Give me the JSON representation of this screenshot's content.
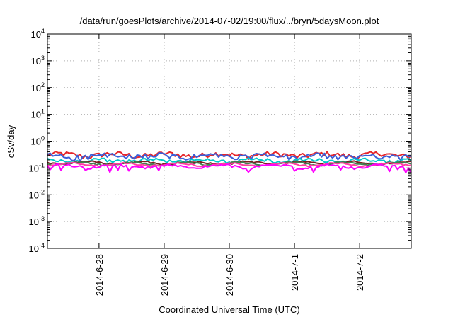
{
  "chart_data": {
    "type": "line",
    "title": "/data/run/goesPlots/archive/2014-07-02/19:00/flux/../bryn/5daysMoon.plot",
    "xlabel": "Coordinated Universal Time (UTC)",
    "ylabel": "cSv/day",
    "y_scale": "log",
    "ylim": [
      0.0001,
      10000
    ],
    "y_ticks": [
      {
        "value": 0.0001,
        "base": "10",
        "exp": "-4"
      },
      {
        "value": 0.001,
        "base": "10",
        "exp": "-3"
      },
      {
        "value": 0.01,
        "base": "10",
        "exp": "-2"
      },
      {
        "value": 0.1,
        "base": "10",
        "exp": "-1"
      },
      {
        "value": 1,
        "base": "10",
        "exp": "0"
      },
      {
        "value": 10,
        "base": "10",
        "exp": "1"
      },
      {
        "value": 100,
        "base": "10",
        "exp": "2"
      },
      {
        "value": 1000,
        "base": "10",
        "exp": "3"
      },
      {
        "value": 10000,
        "base": "10",
        "exp": "4"
      }
    ],
    "xlim": [
      "2014-06-27T05:00",
      "2014-07-02T19:00"
    ],
    "x_ticks": [
      {
        "value": "2014-06-28T00:00",
        "label": "2014-6-28"
      },
      {
        "value": "2014-06-29T00:00",
        "label": "2014-6-29"
      },
      {
        "value": "2014-06-30T00:00",
        "label": "2014-6-30"
      },
      {
        "value": "2014-07-01T00:00",
        "label": "2014-7-1"
      },
      {
        "value": "2014-07-02T00:00",
        "label": "2014-7-2"
      }
    ],
    "grid": true,
    "sample_interval_hours": 1,
    "series": [
      {
        "color": "#e6252a",
        "base": 0.31,
        "amplitude": 0.22,
        "dips": 0.0
      },
      {
        "color": "#3a5fd9",
        "base": 0.27,
        "amplitude": 0.24,
        "dips": 0.0
      },
      {
        "color": "#00c8c8",
        "base": 0.19,
        "amplitude": 0.15,
        "dips": 0.0
      },
      {
        "color": "#7a1f1f",
        "base": 0.155,
        "amplitude": 0.08,
        "dips": 0.0
      },
      {
        "color": "#3f7f4f",
        "base": 0.145,
        "amplitude": 0.07,
        "dips": 0.0
      },
      {
        "color": "#ff3fa0",
        "base": 0.135,
        "amplitude": 0.06,
        "dips": 0.0
      },
      {
        "color": "#ff00ff",
        "base": 0.115,
        "amplitude": 0.1,
        "dips": 0.55
      }
    ]
  }
}
